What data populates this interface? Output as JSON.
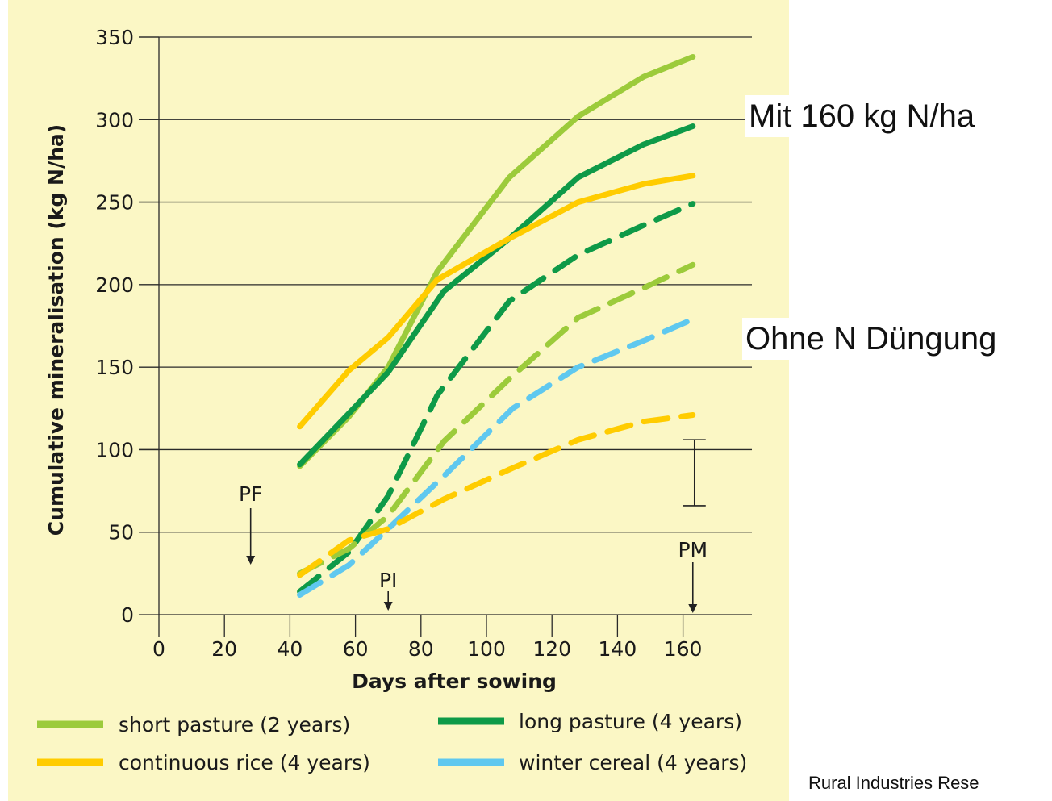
{
  "chart_data": {
    "type": "line",
    "xlabel": "Days after sowing",
    "ylabel": "Cumulative mineralisation (kg N/ha)",
    "xlim": [
      0,
      180
    ],
    "ylim": [
      0,
      350
    ],
    "xticks": [
      0,
      20,
      40,
      60,
      80,
      100,
      120,
      140,
      160
    ],
    "yticks": [
      0,
      50,
      100,
      150,
      200,
      250,
      300,
      350
    ],
    "grid": "horizontal",
    "legend": "bottom",
    "series": [
      {
        "name": "short pasture (2 years)",
        "color": "#9ccb3b",
        "dash": "solid",
        "x": [
          43,
          58,
          70,
          85,
          107,
          128,
          148,
          163
        ],
        "y": [
          90,
          120,
          150,
          208,
          265,
          302,
          326,
          338
        ]
      },
      {
        "name": "long pasture (4 years)",
        "color": "#0e9a48",
        "dash": "solid",
        "x": [
          43,
          58,
          70,
          87,
          107,
          128,
          148,
          163
        ],
        "y": [
          91,
          122,
          147,
          196,
          228,
          265,
          285,
          296
        ]
      },
      {
        "name": "continuous rice (4 years)",
        "color": "#ffcc00",
        "dash": "solid",
        "x": [
          43,
          58,
          70,
          85,
          107,
          128,
          148,
          163
        ],
        "y": [
          114,
          148,
          168,
          203,
          228,
          250,
          261,
          266
        ]
      },
      {
        "name": "",
        "color": "#0e9a48",
        "dash": "dashed",
        "x": [
          43,
          58,
          70,
          85,
          107,
          128,
          148,
          163
        ],
        "y": [
          14,
          38,
          72,
          133,
          190,
          218,
          236,
          249
        ]
      },
      {
        "name": "",
        "color": "#9ccb3b",
        "dash": "dashed",
        "x": [
          43,
          58,
          70,
          87,
          107,
          128,
          148,
          163
        ],
        "y": [
          25,
          40,
          60,
          105,
          143,
          180,
          198,
          212
        ]
      },
      {
        "name": "winter cereal (4 years)",
        "color": "#5fc8ef",
        "dash": "dashed",
        "x": [
          43,
          58,
          70,
          88,
          108,
          128,
          148,
          163
        ],
        "y": [
          12,
          30,
          52,
          86,
          125,
          150,
          166,
          179
        ]
      },
      {
        "name": "",
        "color": "#ffcc00",
        "dash": "dashed",
        "x": [
          43,
          58,
          70,
          87,
          107,
          128,
          148,
          163
        ],
        "y": [
          24,
          45,
          52,
          70,
          88,
          106,
          117,
          121
        ]
      }
    ],
    "error_bar": {
      "x": 163,
      "low": 66,
      "high": 106
    },
    "annotations": [
      {
        "label": "PF",
        "x": 28
      },
      {
        "label": "PI",
        "x": 70
      },
      {
        "label": "PM",
        "x": 163
      }
    ]
  },
  "legend_items": [
    {
      "label": "short pasture (2 years)",
      "color": "#9ccb3b"
    },
    {
      "label": "long pasture (4 years)",
      "color": "#0e9a48"
    },
    {
      "label": "continuous rice (4 years)",
      "color": "#ffcc00"
    },
    {
      "label": "winter cereal (4 years)",
      "color": "#5fc8ef"
    }
  ],
  "notes": {
    "with_n": "Mit 160 kg N/ha",
    "without_n": "Ohne N Düngung"
  },
  "source": "Rural Industries Rese"
}
